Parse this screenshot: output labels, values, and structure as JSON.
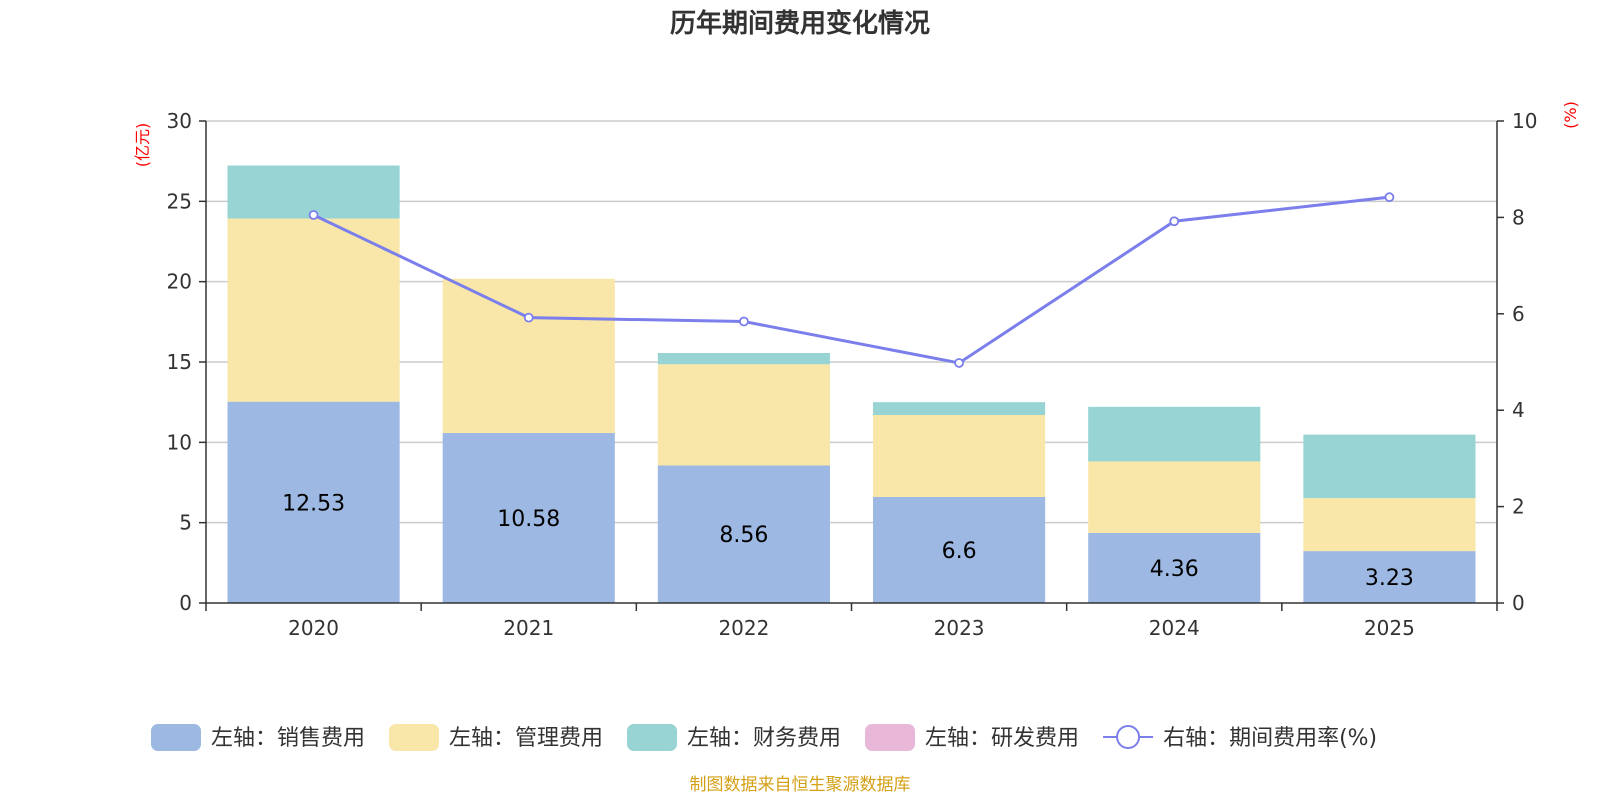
{
  "chart_data": {
    "type": "bar",
    "title": "历年期间费用变化情况",
    "categories": [
      "2020",
      "2021",
      "2022",
      "2023",
      "2024",
      "2025"
    ],
    "left_axis": {
      "unit": "(亿元)",
      "ylim": [
        0,
        30
      ],
      "ticks": [
        "0",
        "5",
        "10",
        "15",
        "20",
        "25",
        "30"
      ]
    },
    "right_axis": {
      "unit": "(%)",
      "ylim": [
        0,
        10
      ],
      "ticks": [
        "0",
        "2",
        "4",
        "6",
        "8",
        "10"
      ]
    },
    "series": [
      {
        "name": "左轴：销售费用",
        "type": "bar",
        "stack": "left",
        "color": "#9db8e2",
        "values": [
          12.53,
          10.58,
          8.56,
          6.6,
          4.36,
          3.23
        ],
        "labels": [
          "12.53",
          "10.58",
          "8.56",
          "6.6",
          "4.36",
          "3.23"
        ]
      },
      {
        "name": "左轴：管理费用",
        "type": "bar",
        "stack": "left",
        "color": "#f8e7a8",
        "values": [
          11.4,
          9.6,
          6.3,
          5.1,
          4.45,
          3.3
        ]
      },
      {
        "name": "左轴：财务费用",
        "type": "bar",
        "stack": "left",
        "color": "#98d4d4",
        "values": [
          3.3,
          0.0,
          0.7,
          0.8,
          3.4,
          3.95
        ]
      },
      {
        "name": "左轴：研发费用",
        "type": "bar",
        "stack": "left",
        "color": "#e9b8d9",
        "values": [
          0,
          0,
          0,
          0,
          0,
          0
        ]
      },
      {
        "name": "右轴：期间费用率(%)",
        "type": "line",
        "axis": "right",
        "color": "#7b7fec",
        "values": [
          8.05,
          5.92,
          5.84,
          4.98,
          7.92,
          8.42
        ]
      }
    ],
    "grid": true,
    "legend_position": "bottom",
    "source": "制图数据来自恒生聚源数据库",
    "source_color": "#d4a017"
  }
}
